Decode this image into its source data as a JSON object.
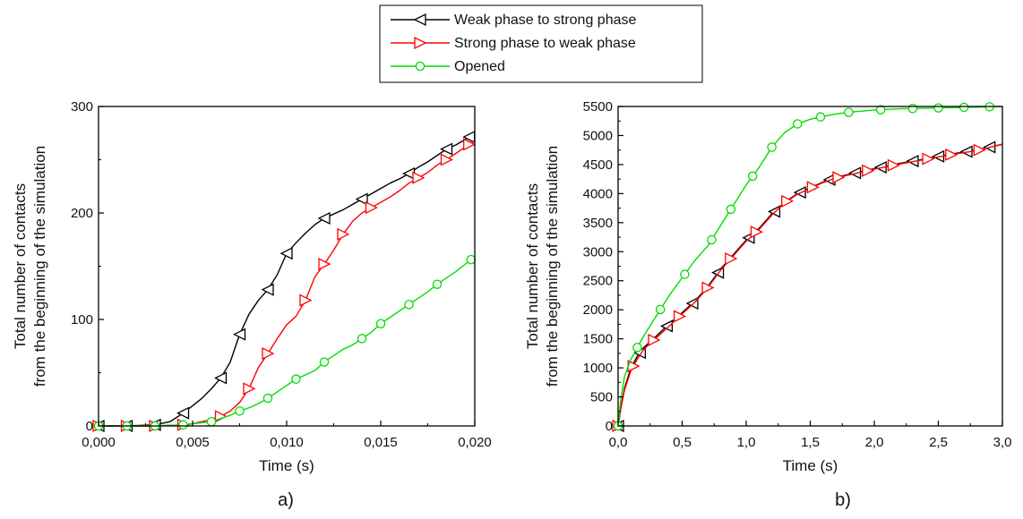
{
  "legend": {
    "entries": [
      {
        "label": "Weak phase to strong phase",
        "color": "#000000",
        "marker": "triangle-left"
      },
      {
        "label": "Strong phase to weak phase",
        "color": "#ff0000",
        "marker": "triangle-right"
      },
      {
        "label": "Opened",
        "color": "#00dd00",
        "marker": "circle"
      }
    ]
  },
  "chart_data": [
    {
      "type": "line",
      "panel_label": "a)",
      "xlabel": "Time (s)",
      "ylabel": [
        "Total number of contacts",
        "from the beginning of the simulation"
      ],
      "xlim": [
        0,
        0.02
      ],
      "ylim": [
        0,
        300
      ],
      "x_ticks": [
        0,
        0.005,
        0.01,
        0.015,
        0.02
      ],
      "x_tick_labels": [
        "0,000",
        "0,005",
        "0,010",
        "0,015",
        "0,020"
      ],
      "y_ticks": [
        0,
        100,
        200,
        300
      ],
      "y_tick_labels": [
        "0",
        "100",
        "200",
        "300"
      ],
      "series": [
        {
          "name": "Weak phase to strong phase",
          "color": "#000000",
          "marker": "triangle-left",
          "x": [
            0,
            0.0015,
            0.003,
            0.0038,
            0.0045,
            0.005,
            0.0055,
            0.006,
            0.0065,
            0.007,
            0.0075,
            0.008,
            0.0085,
            0.009,
            0.0095,
            0.01,
            0.0105,
            0.011,
            0.0115,
            0.012,
            0.0125,
            0.013,
            0.0135,
            0.014,
            0.0145,
            0.015,
            0.0155,
            0.016,
            0.0165,
            0.017,
            0.0175,
            0.018,
            0.0185,
            0.019,
            0.0195,
            0.02
          ],
          "y": [
            0,
            0,
            1,
            4,
            12,
            19,
            26,
            35,
            45,
            60,
            86,
            105,
            118,
            128,
            142,
            162,
            172,
            181,
            189,
            195,
            199,
            203,
            208,
            213,
            218,
            223,
            228,
            232,
            237,
            243,
            248,
            254,
            260,
            264,
            269,
            275
          ],
          "marker_x": [
            0,
            0.0015,
            0.003,
            0.0045,
            0.0065,
            0.0075,
            0.009,
            0.01,
            0.012,
            0.014,
            0.0165,
            0.0185,
            0.0197
          ]
        },
        {
          "name": "Strong phase to weak phase",
          "color": "#ff0000",
          "marker": "triangle-right",
          "x": [
            0,
            0.0015,
            0.003,
            0.0045,
            0.005,
            0.0055,
            0.006,
            0.0065,
            0.007,
            0.0075,
            0.008,
            0.0085,
            0.009,
            0.0095,
            0.01,
            0.0105,
            0.011,
            0.0115,
            0.012,
            0.0125,
            0.013,
            0.0135,
            0.014,
            0.0145,
            0.015,
            0.0155,
            0.016,
            0.0165,
            0.017,
            0.0175,
            0.018,
            0.0185,
            0.019,
            0.0195,
            0.02
          ],
          "y": [
            0,
            0,
            0,
            1,
            2,
            4,
            6,
            9,
            14,
            22,
            35,
            55,
            68,
            82,
            95,
            103,
            118,
            140,
            152,
            165,
            180,
            192,
            200,
            205,
            210,
            215,
            221,
            228,
            233,
            238,
            245,
            250,
            256,
            262,
            268
          ],
          "marker_x": [
            0,
            0.0015,
            0.003,
            0.0045,
            0.0065,
            0.008,
            0.009,
            0.011,
            0.012,
            0.013,
            0.0145,
            0.017,
            0.0185,
            0.0197
          ]
        },
        {
          "name": "Opened",
          "color": "#00dd00",
          "marker": "circle",
          "x": [
            0,
            0.0015,
            0.003,
            0.0045,
            0.006,
            0.007,
            0.0075,
            0.008,
            0.0085,
            0.009,
            0.0095,
            0.01,
            0.0105,
            0.011,
            0.0115,
            0.012,
            0.0125,
            0.013,
            0.0135,
            0.014,
            0.0145,
            0.015,
            0.0155,
            0.016,
            0.0165,
            0.017,
            0.0175,
            0.018,
            0.0185,
            0.019,
            0.0195,
            0.02
          ],
          "y": [
            0,
            0,
            0,
            1,
            4,
            10,
            14,
            17,
            21,
            26,
            32,
            38,
            44,
            48,
            52,
            60,
            66,
            72,
            76,
            82,
            88,
            96,
            102,
            108,
            114,
            120,
            126,
            133,
            139,
            145,
            152,
            159
          ],
          "marker_x": [
            0,
            0.0015,
            0.003,
            0.0045,
            0.006,
            0.0075,
            0.009,
            0.0105,
            0.012,
            0.014,
            0.015,
            0.0165,
            0.018,
            0.0198
          ]
        }
      ]
    },
    {
      "type": "line",
      "panel_label": "b)",
      "xlabel": "Time (s)",
      "ylabel": [
        "Total number of contacts",
        "from the beginning of the simulation"
      ],
      "xlim": [
        0,
        3.0
      ],
      "ylim": [
        0,
        5500
      ],
      "x_ticks": [
        0,
        0.5,
        1.0,
        1.5,
        2.0,
        2.5,
        3.0
      ],
      "x_tick_labels": [
        "0,0",
        "0,5",
        "1,0",
        "1,5",
        "2,0",
        "2,5",
        "3,0"
      ],
      "y_ticks": [
        0,
        500,
        1000,
        1500,
        2000,
        2500,
        3000,
        3500,
        4000,
        4500,
        5000,
        5500
      ],
      "y_tick_labels": [
        "0",
        "500",
        "1000",
        "1500",
        "2000",
        "2500",
        "3000",
        "3500",
        "4000",
        "4500",
        "5000",
        "5500"
      ],
      "series": [
        {
          "name": "Weak phase to strong phase",
          "color": "#000000",
          "marker": "triangle-left",
          "x": [
            0,
            0.02,
            0.05,
            0.1,
            0.15,
            0.2,
            0.3,
            0.4,
            0.5,
            0.6,
            0.7,
            0.8,
            0.9,
            1.0,
            1.1,
            1.2,
            1.3,
            1.4,
            1.5,
            1.6,
            1.7,
            1.8,
            1.9,
            2.0,
            2.2,
            2.4,
            2.6,
            2.8,
            3.0
          ],
          "y": [
            0,
            300,
            650,
            1000,
            1200,
            1350,
            1550,
            1760,
            1950,
            2150,
            2400,
            2700,
            2950,
            3200,
            3400,
            3650,
            3850,
            4000,
            4100,
            4200,
            4280,
            4330,
            4380,
            4430,
            4520,
            4600,
            4680,
            4750,
            4850
          ],
          "marker_x": [
            0,
            0.17,
            0.38,
            0.58,
            0.78,
            1.02,
            1.22,
            1.42,
            1.65,
            1.85,
            2.05,
            2.3,
            2.5,
            2.72,
            2.9
          ]
        },
        {
          "name": "Strong phase to weak phase",
          "color": "#ff0000",
          "marker": "triangle-right",
          "x": [
            0,
            0.02,
            0.05,
            0.1,
            0.15,
            0.2,
            0.3,
            0.4,
            0.5,
            0.6,
            0.7,
            0.8,
            0.9,
            1.0,
            1.1,
            1.2,
            1.3,
            1.4,
            1.5,
            1.6,
            1.7,
            1.8,
            1.9,
            2.0,
            2.2,
            2.4,
            2.6,
            2.8,
            3.0
          ],
          "y": [
            0,
            280,
            620,
            950,
            1150,
            1320,
            1520,
            1720,
            1930,
            2130,
            2380,
            2680,
            2930,
            3180,
            3380,
            3630,
            3840,
            3990,
            4090,
            4190,
            4270,
            4320,
            4370,
            4420,
            4510,
            4590,
            4670,
            4740,
            4850
          ],
          "marker_x": [
            0,
            0.12,
            0.28,
            0.48,
            0.7,
            0.88,
            1.08,
            1.32,
            1.52,
            1.72,
            1.95,
            2.15,
            2.42,
            2.6,
            2.82
          ]
        },
        {
          "name": "Opened",
          "color": "#00dd00",
          "marker": "circle",
          "x": [
            0,
            0.02,
            0.05,
            0.1,
            0.15,
            0.2,
            0.3,
            0.4,
            0.5,
            0.6,
            0.7,
            0.8,
            0.9,
            1.0,
            1.1,
            1.2,
            1.3,
            1.4,
            1.5,
            1.6,
            1.7,
            1.8,
            1.9,
            2.0,
            2.2,
            2.4,
            2.6,
            2.8,
            3.0
          ],
          "y": [
            0,
            450,
            850,
            1150,
            1350,
            1550,
            1900,
            2250,
            2550,
            2850,
            3100,
            3450,
            3800,
            4150,
            4450,
            4800,
            5050,
            5200,
            5280,
            5330,
            5370,
            5400,
            5420,
            5440,
            5460,
            5470,
            5480,
            5490,
            5500
          ],
          "marker_x": [
            0,
            0.15,
            0.33,
            0.52,
            0.73,
            0.88,
            1.05,
            1.2,
            1.4,
            1.58,
            1.8,
            2.05,
            2.3,
            2.5,
            2.7,
            2.9
          ]
        }
      ]
    }
  ]
}
